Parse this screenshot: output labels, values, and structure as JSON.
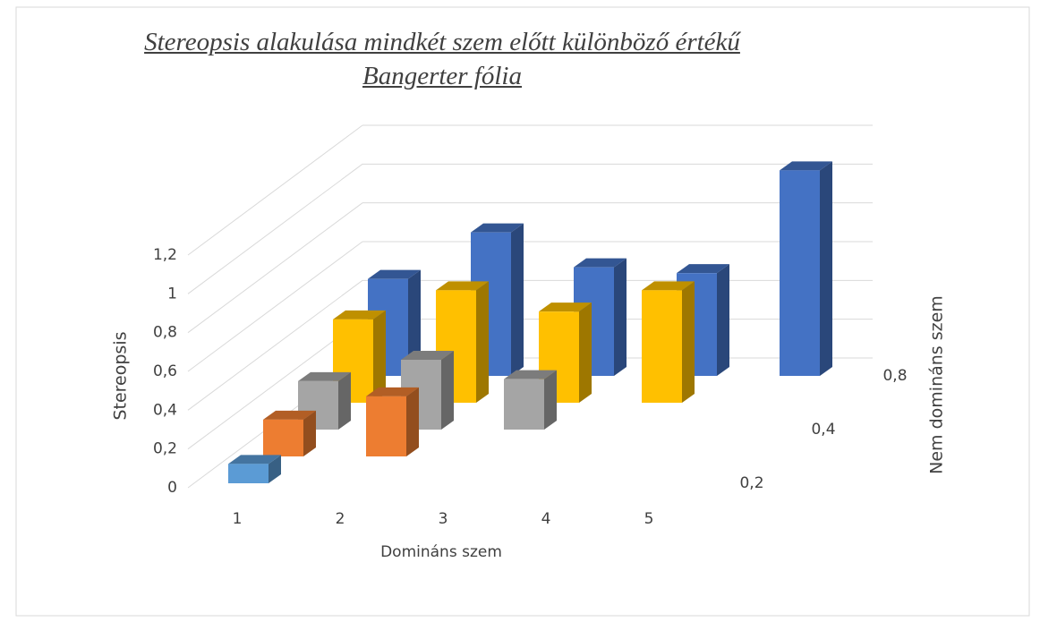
{
  "chart_data": {
    "type": "bar3d",
    "title": "Stereopsis alakulása mindkét szem előtt különböző értékű Bangerter fólia",
    "x_label": "Domináns szem",
    "y_label": "Stereopsis",
    "z_label": "Nem domináns szem",
    "categories": [
      "1",
      "2",
      "3",
      "4",
      "5"
    ],
    "series": [
      {
        "name": "0,2",
        "color": "#5b9bd5",
        "values": [
          0.1,
          null,
          null,
          null,
          null
        ]
      },
      {
        "name": null,
        "color": "#ed7d31",
        "values": [
          0.19,
          0.31,
          null,
          null,
          null
        ]
      },
      {
        "name": "0,4",
        "color": "#a5a5a5",
        "values": [
          0.25,
          0.36,
          0.26,
          null,
          null
        ]
      },
      {
        "name": null,
        "color": "#ffc000",
        "values": [
          0.43,
          0.58,
          0.47,
          0.58,
          null
        ]
      },
      {
        "name": "0,8",
        "color": "#4472c4",
        "values": [
          0.5,
          0.74,
          0.56,
          0.53,
          1.06
        ]
      }
    ],
    "ylim": [
      0,
      1.2
    ],
    "yticks": [
      0,
      {
        "value": 0.2,
        "label": "0,2"
      },
      {
        "value": 0.4,
        "label": "0,4"
      },
      {
        "value": 0.6,
        "label": "0,6"
      },
      {
        "value": 0.8,
        "label": "0,8"
      },
      1,
      {
        "value": 1.2,
        "label": "1,2"
      }
    ],
    "grid": true
  }
}
